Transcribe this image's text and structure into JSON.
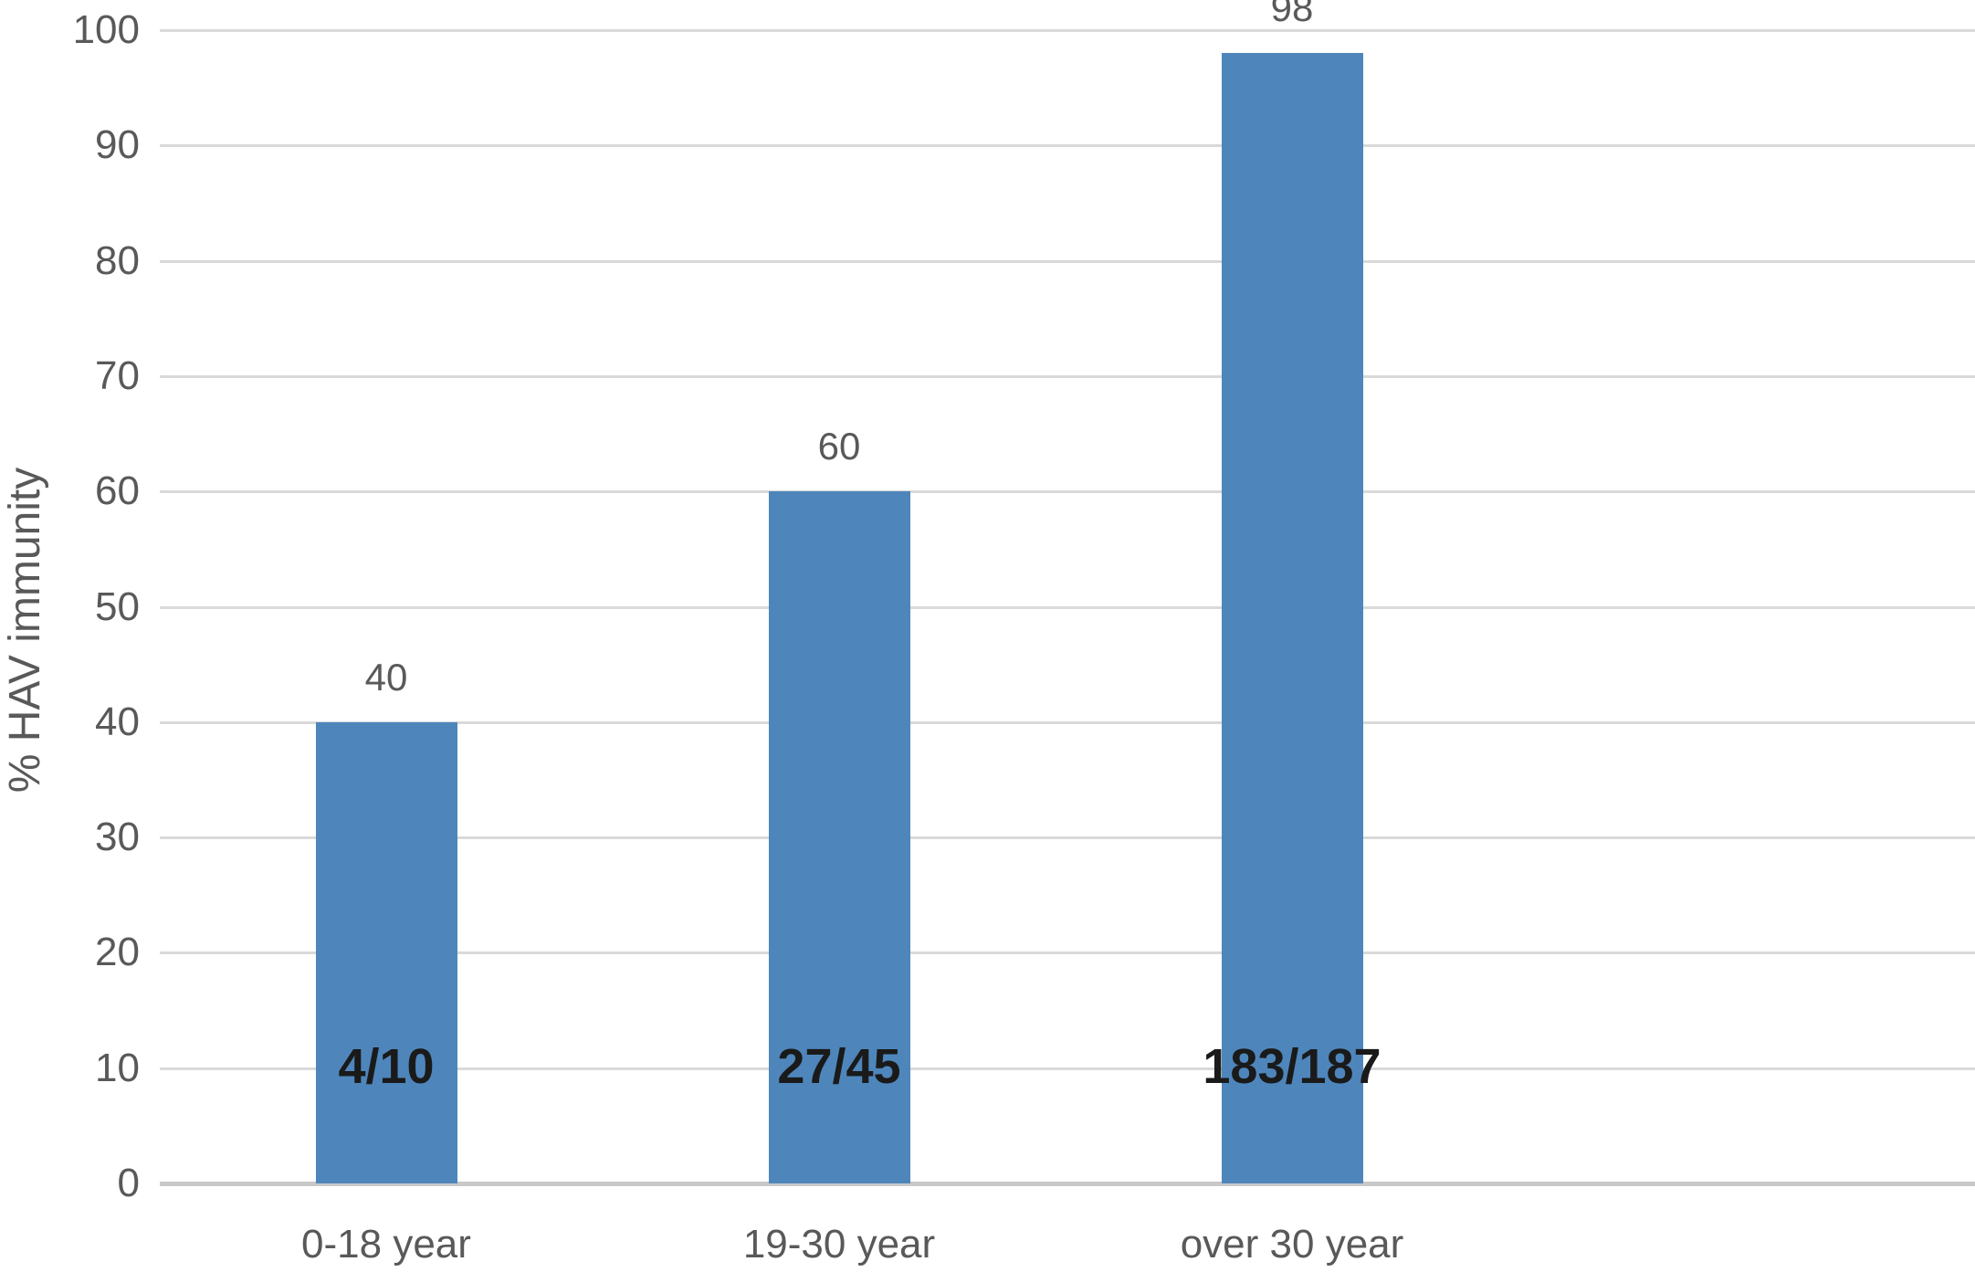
{
  "chart_data": {
    "type": "bar",
    "title": "",
    "xlabel": "",
    "ylabel": "% HAV immunity",
    "categories": [
      "0-18 year",
      "19-30 year",
      "over 30 year"
    ],
    "values": [
      40,
      60,
      98
    ],
    "value_labels": [
      "40",
      "60",
      "98"
    ],
    "fraction_labels": [
      "4/10",
      "27/45",
      "183/187"
    ],
    "y_ticks": [
      0,
      10,
      20,
      30,
      40,
      50,
      60,
      70,
      80,
      90,
      100
    ],
    "ylim": [
      0,
      100
    ],
    "grid": "horizontal-only",
    "legend_position": "none",
    "colors": {
      "bar": "#4e86bb",
      "gridline": "#d9d9d9",
      "baseline": "#c8c8c8",
      "axis_text": "#595959",
      "fraction_text": "#1a1a1a",
      "background": "#ffffff"
    }
  }
}
